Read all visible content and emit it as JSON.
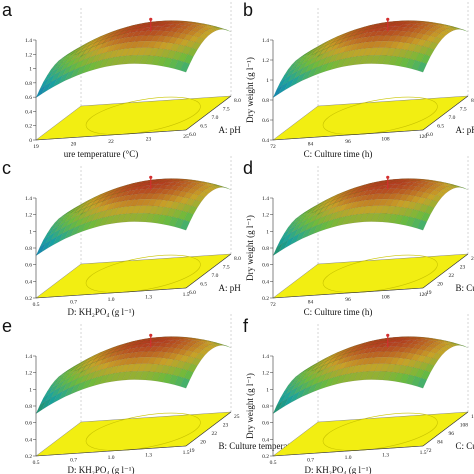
{
  "chart_data": [
    {
      "type": "surface3d",
      "panel": "a",
      "z_ticks": [
        "0",
        "0.2",
        "0.4",
        "0.6",
        "0.8",
        "1",
        "1.2",
        "1.4"
      ],
      "ylabel": "",
      "x_label": "A: pH",
      "x_ticks": [
        "6.0",
        "6.5",
        "7.0",
        "7.5",
        "8.0"
      ],
      "y_label": "ure temperature (°C)",
      "y_ticks": [
        "19",
        "20",
        "22",
        "23",
        "25"
      ],
      "color_low": "#1565c0",
      "color_high": "#c0392b"
    },
    {
      "type": "surface3d",
      "panel": "b",
      "z_ticks": [
        "0.4",
        "0.6",
        "0.8",
        "1",
        "1.2",
        "1.4"
      ],
      "ylabel": "Dry weight (g l⁻¹)",
      "x_label": "A: pH",
      "x_ticks": [
        "6.0",
        "6.5",
        "7.0",
        "7.5",
        "8.0"
      ],
      "y_label": "C: Culture time (h)",
      "y_ticks": [
        "72",
        "84",
        "96",
        "108",
        "120"
      ],
      "color_low": "#1565c0",
      "color_high": "#c0392b"
    },
    {
      "type": "surface3d",
      "panel": "c",
      "z_ticks": [
        "0.2",
        "0.4",
        "0.6",
        "0.8",
        "1",
        "1.2",
        "1.4"
      ],
      "ylabel": "",
      "x_label": "A: pH",
      "x_ticks": [
        "6.0",
        "6.5",
        "7.0",
        "7.5",
        "8.0"
      ],
      "y_label": "D: KH₂PO₄ (g l⁻¹)",
      "y_ticks": [
        "0.5",
        "0.7",
        "1.0",
        "1.3",
        "1.5"
      ],
      "color_low": "#1565c0",
      "color_high": "#c0392b"
    },
    {
      "type": "surface3d",
      "panel": "d",
      "z_ticks": [
        "0.2",
        "0.4",
        "0.6",
        "0.8",
        "1",
        "1.2",
        "1.4"
      ],
      "ylabel": "Dry weight (g l⁻¹)",
      "x_label": "B: Culture tempera",
      "x_ticks": [
        "19",
        "20",
        "22",
        "23",
        "25"
      ],
      "y_label": "C: Culture time (h)",
      "y_ticks": [
        "72",
        "84",
        "96",
        "108",
        "120"
      ],
      "color_low": "#2e7d32",
      "color_high": "#c0392b"
    },
    {
      "type": "surface3d",
      "panel": "e",
      "z_ticks": [
        "0.2",
        "0.4",
        "0.6",
        "0.8",
        "1",
        "1.2",
        "1.4"
      ],
      "ylabel": "",
      "x_label": "B: Culture temperature (°C)",
      "x_ticks": [
        "19",
        "20",
        "22",
        "23",
        "25"
      ],
      "y_label": "D: KH₂PO₄ (g l⁻¹)",
      "y_ticks": [
        "0.5",
        "0.7",
        "1.0",
        "1.3",
        "1.5"
      ],
      "color_low": "#2e7d32",
      "color_high": "#c0392b"
    },
    {
      "type": "surface3d",
      "panel": "f",
      "z_ticks": [
        "0.2",
        "0.4",
        "0.6",
        "0.8",
        "1",
        "1.2",
        "1.4"
      ],
      "ylabel": "Dry weight (g l⁻¹)",
      "x_label": "C: Culture time",
      "x_ticks": [
        "72",
        "84",
        "96",
        "108",
        "120"
      ],
      "y_label": "D: KH₂PO₄ (g l⁻¹)",
      "y_ticks": [
        "0.5",
        "0.7",
        "1.0",
        "1.3",
        "1.5"
      ],
      "color_low": "#2e7d32",
      "color_high": "#c0392b"
    }
  ],
  "panels": [
    {
      "letter": "a"
    },
    {
      "letter": "b"
    },
    {
      "letter": "c"
    },
    {
      "letter": "d"
    },
    {
      "letter": "e"
    },
    {
      "letter": "f"
    }
  ],
  "colors": {
    "floor": "#f2ee12",
    "contour": "#c9c400",
    "axis": "#333333",
    "marker": "#d32f2f"
  }
}
